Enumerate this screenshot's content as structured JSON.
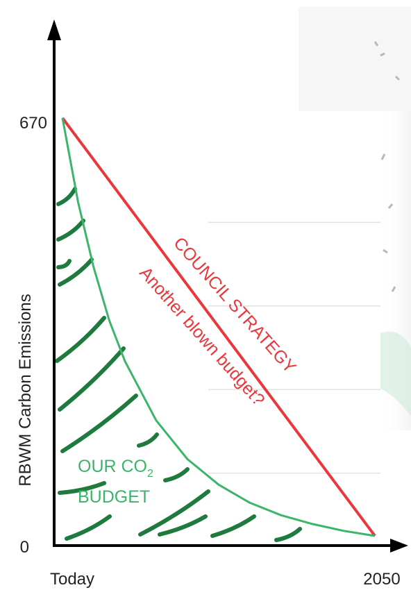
{
  "chart_data": {
    "type": "line",
    "ylabel": "RBWM Carbon Emissions",
    "x_tick_labels": [
      "Today",
      "2050"
    ],
    "y_tick_labels": [
      "670",
      "0"
    ],
    "ylim": [
      0,
      670
    ],
    "grid": true,
    "series": [
      {
        "name": "COUNCIL STRATEGY",
        "color": "#e8383b",
        "x": [
          0,
          1
        ],
        "y": [
          670,
          0
        ]
      },
      {
        "name": "OUR CO2 BUDGET",
        "color": "#3bb56a",
        "x": [
          0,
          0.05,
          0.1,
          0.15,
          0.2,
          0.3,
          0.4,
          0.5,
          0.6,
          0.7,
          0.8,
          0.9,
          1.0
        ],
        "y": [
          670,
          535,
          430,
          345,
          280,
          185,
          123,
          82,
          53,
          33,
          19,
          8,
          0
        ]
      }
    ],
    "annotations": {
      "red_line_1": "COUNCIL STRATEGY",
      "red_line_2": "Another blown budget?",
      "green_line_1": "OUR CO",
      "green_subscript": "2",
      "green_line_2": "BUDGET"
    }
  },
  "colors": {
    "red": "#e8383b",
    "green": "#3bb56a",
    "hatch": "#1f7a3e",
    "axis": "#000000",
    "grid": "#e2e2e2",
    "label": "#222222"
  }
}
